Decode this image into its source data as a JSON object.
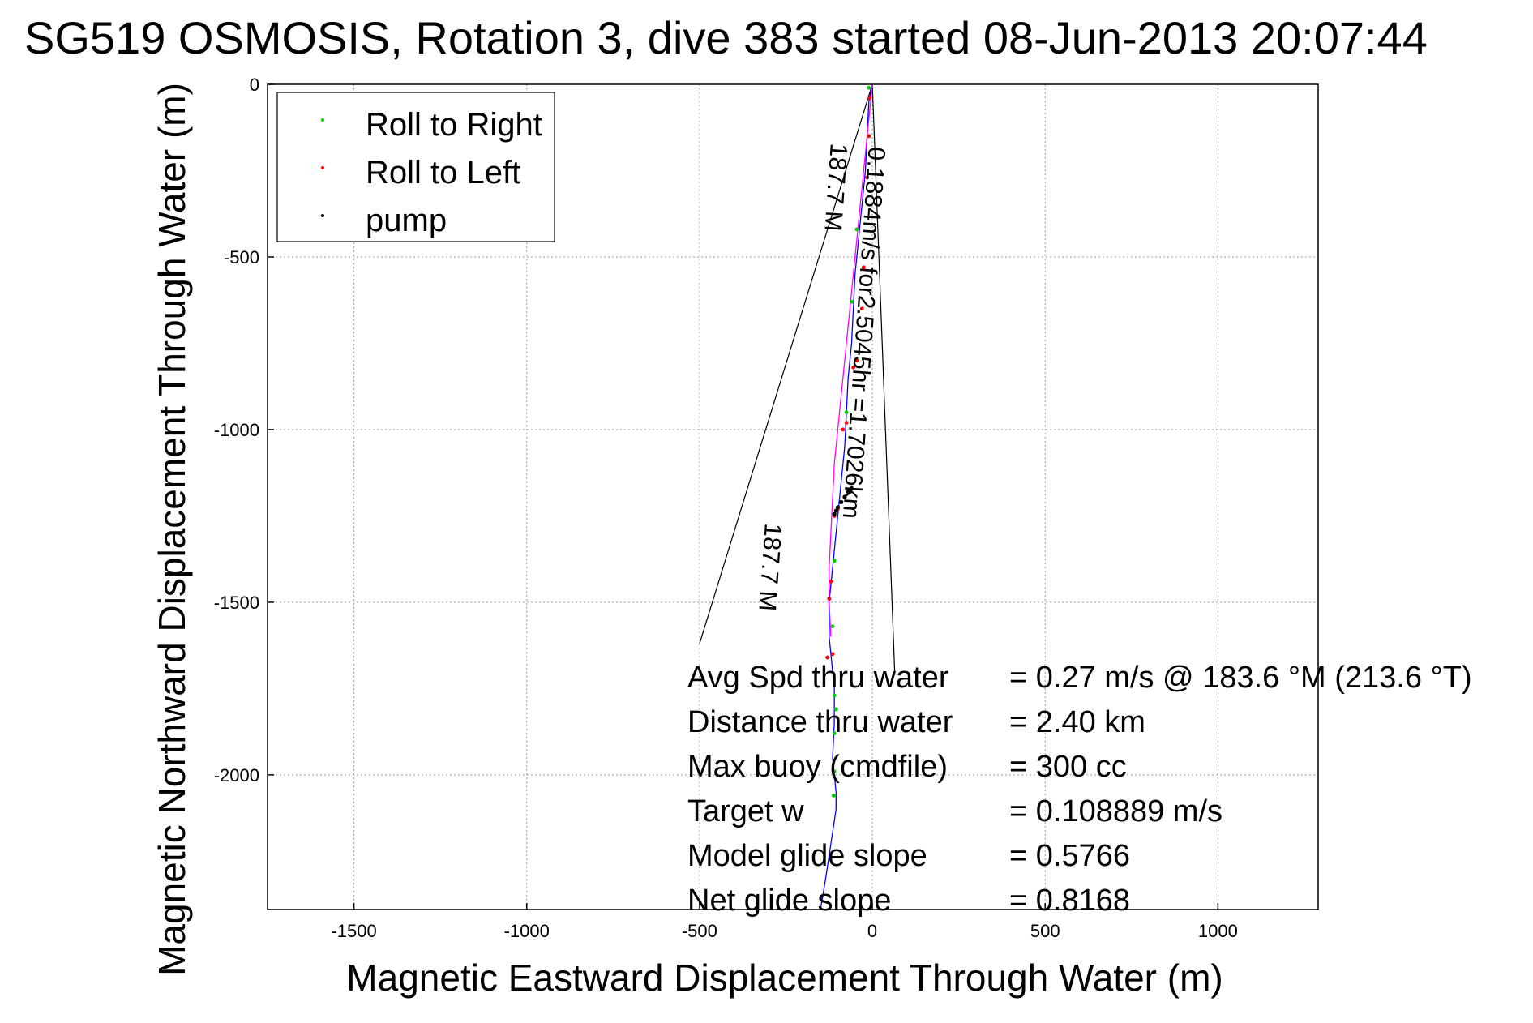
{
  "chart_data": {
    "type": "line",
    "title": "SG519 OSMOSIS, Rotation 3, dive 383 started 08-Jun-2013 20:07:44",
    "xlabel": "Magnetic Eastward Displacement Through Water (m)",
    "ylabel": "Magnetic Northward Displacement Through Water (m)",
    "xlim": [
      -1750,
      1290
    ],
    "ylim": [
      -2390,
      0
    ],
    "xticks": [
      -1500,
      -1000,
      -500,
      0,
      500,
      1000
    ],
    "yticks": [
      0,
      -500,
      -1000,
      -1500,
      -2000
    ],
    "xtick_labels": [
      "-1500",
      "-1000",
      "-500",
      "0",
      "500",
      "1000"
    ],
    "ytick_labels": [
      "0",
      "-500",
      "-1000",
      "-1500",
      "-2000"
    ],
    "grid": true,
    "legend_position": "top-left",
    "legend": [
      {
        "name": "Roll to Right",
        "color": "#00cc00"
      },
      {
        "name": "Roll to Left",
        "color": "#ff0000"
      },
      {
        "name": "pump",
        "color": "#000000"
      }
    ],
    "series": [
      {
        "color": "#0000ff",
        "x": [
          0,
          -10,
          -15,
          -20,
          -30,
          -40,
          -50,
          -55,
          -60,
          -70,
          -75,
          -80,
          -85,
          -90,
          -95,
          -100,
          -105,
          -110,
          -115,
          -125,
          -125,
          -120,
          -115,
          -110,
          -110,
          -115,
          -110,
          -105,
          -105,
          -120,
          -135,
          -150
        ],
        "y": [
          0,
          -50,
          -150,
          -250,
          -350,
          -450,
          -550,
          -650,
          -750,
          -850,
          -950,
          -1050,
          -1100,
          -1150,
          -1200,
          -1250,
          -1300,
          -1350,
          -1400,
          -1500,
          -1600,
          -1650,
          -1700,
          -1750,
          -1850,
          -1950,
          -2000,
          -2050,
          -2100,
          -2200,
          -2300,
          -2390
        ]
      },
      {
        "color": "#ff00ff",
        "x": [
          0,
          -10,
          -20,
          -30,
          -40,
          -50,
          -60,
          -70,
          -80,
          -90,
          -100,
          -110,
          -115,
          -120,
          -125,
          -125,
          -120
        ],
        "y": [
          0,
          -100,
          -200,
          -300,
          -400,
          -500,
          -600,
          -700,
          -800,
          -900,
          -1000,
          -1100,
          -1200,
          -1300,
          -1400,
          -1500,
          -1600
        ]
      }
    ],
    "markers": [
      {
        "name": "Roll to Right",
        "color": "#00cc00",
        "x": [
          -10,
          -45,
          -60,
          -75,
          -110,
          -115,
          -110,
          -105,
          -110,
          -110,
          -112
        ],
        "y": [
          -10,
          -420,
          -630,
          -950,
          -1380,
          -1570,
          -1770,
          -1810,
          -1880,
          -1990,
          -2060
        ]
      },
      {
        "name": "Roll to Left",
        "color": "#ff0000",
        "x": [
          -8,
          -10,
          -15,
          -25,
          -30,
          -45,
          -55,
          -75,
          -85,
          -100,
          -110,
          -120,
          -125,
          -115,
          -130
        ],
        "y": [
          -40,
          -150,
          -270,
          -530,
          -650,
          -800,
          -820,
          -980,
          -1000,
          -1230,
          -1250,
          -1440,
          -1490,
          -1650,
          -1660
        ]
      },
      {
        "name": "pump",
        "color": "#000000",
        "x": [
          -60,
          -70,
          -80,
          -90,
          -100,
          -105,
          -110
        ],
        "y": [
          -1170,
          -1180,
          -1195,
          -1210,
          -1225,
          -1235,
          -1245
        ]
      }
    ],
    "guide_lines": [
      {
        "x": [
          0,
          -500
        ],
        "y": [
          0,
          -1620
        ]
      },
      {
        "x": [
          0,
          65
        ],
        "y": [
          0,
          -1710
        ]
      }
    ],
    "annotations": [
      {
        "text": "0.1884m/s for2.5045hr =1.7026km",
        "x": -10,
        "y": -180,
        "rotation": 94
      },
      {
        "text": "187.7 M",
        "x": -120,
        "y": -170,
        "rotation": 94
      },
      {
        "text": "187.7 M",
        "x": -310,
        "y": -1270,
        "rotation": 94
      }
    ],
    "stats": [
      {
        "label": "Avg Spd thru water",
        "value": "=  0.27 m/s @ 183.6 °M (213.6 °T)"
      },
      {
        "label": "Distance thru water",
        "value": "=  2.40 km"
      },
      {
        "label": "Max buoy (cmdfile)",
        "value": "= 300 cc"
      },
      {
        "label": "Target w",
        "value": "= 0.108889 m/s"
      },
      {
        "label": "Model glide slope",
        "value": "= 0.5766"
      },
      {
        "label": "Net glide slope",
        "value": "= 0.8168"
      }
    ]
  }
}
